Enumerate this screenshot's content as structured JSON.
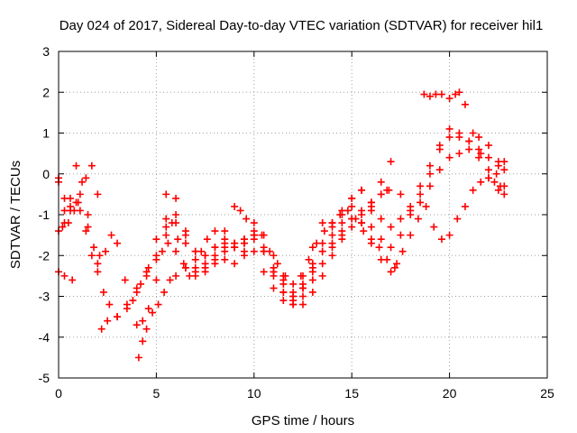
{
  "chart_data": {
    "type": "scatter",
    "title": "Day 024 of 2017, Sidereal Day-to-day VTEC variation (SDTVAR) for receiver hil1",
    "xlabel": "GPS time / hours",
    "ylabel": "SDTVAR / TECUs",
    "xlim": [
      0,
      25
    ],
    "ylim": [
      -5,
      3
    ],
    "xticks": [
      "0",
      "5",
      "10",
      "15",
      "20",
      "25"
    ],
    "yticks": [
      "-5",
      "-4",
      "-3",
      "-2",
      "-1",
      "0",
      "1",
      "2",
      "3"
    ],
    "grid": true,
    "marker": "+",
    "color": "#ff0000",
    "series": [
      {
        "x": [
          0.0,
          0.3,
          0.6,
          0.9,
          1.1,
          1.4,
          1.7,
          2.0,
          2.3,
          2.6,
          3.0,
          3.5,
          4.0,
          4.5,
          5.0,
          5.3,
          5.6,
          6.0,
          6.5,
          7.0,
          7.5,
          8.0,
          8.5,
          9.0,
          9.5,
          10.0,
          10.5,
          11.0,
          11.5,
          12.0,
          12.5,
          13.0,
          13.5,
          14.0,
          14.5,
          15.0,
          15.5,
          16.0,
          16.5,
          17.0,
          17.5,
          18.0,
          18.5,
          19.0,
          19.5,
          20.0,
          20.5,
          21.0,
          21.5,
          22.0,
          22.5,
          22.8
        ],
        "y": [
          -0.1,
          -0.6,
          -0.8,
          -0.7,
          -0.9,
          -1.4,
          -2.0,
          -2.4,
          -2.9,
          -3.2,
          -3.5,
          -3.3,
          -2.9,
          -2.4,
          -2.1,
          -1.9,
          -1.7,
          -1.9,
          -2.3,
          -2.5,
          -2.4,
          -2.1,
          -1.8,
          -1.7,
          -1.6,
          -1.5,
          -1.9,
          -2.4,
          -2.7,
          -2.9,
          -2.8,
          -2.4,
          -1.9,
          -1.5,
          -1.0,
          -0.6,
          -0.4,
          -0.7,
          -1.1,
          -1.3,
          -1.1,
          -0.8,
          -0.3,
          0.2,
          0.7,
          1.1,
          0.9,
          0.8,
          0.6,
          0.4,
          0.2,
          0.3
        ]
      },
      {
        "x": [
          0.0,
          0.3,
          0.6,
          0.9,
          1.2,
          1.5,
          1.8,
          2.1,
          2.4,
          2.7,
          3.0,
          3.4,
          3.8,
          4.2,
          4.6,
          5.0,
          5.5,
          6.0,
          6.5,
          7.0,
          7.5,
          8.0,
          8.5,
          9.0,
          9.5,
          10.0,
          10.5,
          11.0,
          11.5,
          12.0,
          12.5,
          13.0,
          13.5,
          14.0,
          14.5,
          15.0,
          15.5,
          16.0,
          16.5,
          17.0,
          17.5,
          18.0,
          18.5,
          19.0,
          19.5,
          20.0,
          20.5,
          21.0,
          21.5,
          22.0,
          22.5,
          22.8
        ],
        "y": [
          -1.4,
          -1.2,
          -0.9,
          0.2,
          -0.2,
          -1.0,
          -1.8,
          -2.0,
          -1.9,
          -1.5,
          -1.7,
          -2.6,
          -3.1,
          -2.7,
          -2.3,
          -1.6,
          -1.1,
          -1.0,
          -1.5,
          -1.9,
          -2.0,
          -1.8,
          -1.6,
          -1.8,
          -2.0,
          -1.9,
          -2.4,
          -2.8,
          -3.1,
          -3.2,
          -3.0,
          -2.6,
          -2.2,
          -1.8,
          -1.4,
          -1.1,
          -1.0,
          -1.3,
          -1.6,
          -1.8,
          -1.5,
          -1.0,
          -0.5,
          0.0,
          0.6,
          0.9,
          1.0,
          0.8,
          0.4,
          -0.1,
          -0.4,
          -0.5
        ]
      },
      {
        "x": [
          0.0,
          0.3,
          0.6,
          1.0,
          1.5,
          2.0,
          2.2,
          2.5,
          3.0,
          3.5,
          4.0,
          4.5,
          5.0,
          5.5,
          6.0,
          6.5,
          7.0,
          7.5,
          8.0,
          8.5,
          9.0,
          9.5,
          10.0,
          10.5,
          11.0,
          11.5,
          12.0,
          12.5,
          13.0,
          13.5,
          14.0,
          14.5,
          15.0,
          15.5,
          16.0,
          16.5,
          17.0,
          17.5,
          18.0,
          18.5,
          19.0,
          19.5,
          20.0,
          20.5,
          21.0,
          21.5,
          22.0,
          22.5,
          22.8
        ],
        "y": [
          -0.2,
          -0.9,
          -0.6,
          -0.7,
          -1.3,
          -2.2,
          -3.8,
          -3.6,
          -3.5,
          -3.2,
          -2.8,
          -2.5,
          -2.0,
          -1.5,
          -1.2,
          -1.4,
          -1.9,
          -2.2,
          -2.0,
          -1.7,
          -1.8,
          -1.9,
          -1.6,
          -1.5,
          -2.0,
          -2.5,
          -3.0,
          -3.2,
          -2.9,
          -2.5,
          -2.0,
          -1.6,
          -1.3,
          -1.2,
          -0.8,
          -0.2,
          0.3,
          -0.5,
          -0.9,
          -0.7,
          -0.3,
          0.1,
          0.4,
          0.5,
          0.6,
          0.9,
          0.7,
          0.3,
          0.1
        ]
      },
      {
        "x": [
          4.1,
          4.3,
          4.5,
          4.8,
          5.1,
          5.4,
          5.7,
          6.0,
          6.5,
          7.0,
          7.5,
          8.0,
          8.5,
          9.0,
          9.5,
          10.0,
          10.5,
          11.0,
          11.5,
          12.0,
          12.5,
          13.0,
          13.5,
          14.0,
          14.5,
          15.0,
          15.5,
          16.0,
          16.5,
          17.0,
          17.3
        ],
        "y": [
          -4.5,
          -4.1,
          -3.8,
          -3.4,
          -3.2,
          -2.9,
          -2.6,
          -2.5,
          -2.3,
          -2.1,
          -2.0,
          -2.2,
          -2.1,
          -1.7,
          -1.6,
          -1.5,
          -1.8,
          -2.4,
          -2.9,
          -3.1,
          -2.8,
          -2.3,
          -1.7,
          -1.2,
          -0.9,
          -0.8,
          -1.2,
          -1.7,
          -2.1,
          -2.4,
          -2.2
        ]
      },
      {
        "x": [
          4.0,
          4.3,
          4.6,
          5.0,
          5.5,
          6.0,
          6.5,
          7.0,
          7.5,
          8.0,
          8.5,
          9.0,
          9.5,
          10.0,
          10.5,
          11.0,
          11.5,
          12.0,
          12.5,
          13.0,
          13.5,
          14.0,
          14.5,
          15.0,
          15.5,
          16.0,
          16.5,
          16.9
        ],
        "y": [
          -3.7,
          -3.6,
          -3.3,
          -2.6,
          -1.3,
          -0.6,
          -1.7,
          -2.4,
          -2.0,
          -1.4,
          -1.4,
          -1.8,
          -1.7,
          -1.4,
          -1.9,
          -2.5,
          -2.9,
          -3.0,
          -2.7,
          -2.2,
          -1.9,
          -1.7,
          -1.2,
          -0.6,
          -0.4,
          -0.9,
          -0.5,
          -0.4
        ]
      },
      {
        "x": [
          7.5,
          8.0,
          8.5,
          9.0,
          9.5,
          10.0,
          10.5,
          11.0,
          11.5,
          12.0,
          12.5,
          13.0,
          13.5,
          14.0,
          14.5,
          15.0,
          15.5,
          16.0,
          16.5,
          16.8
        ],
        "y": [
          -2.3,
          -1.8,
          -1.9,
          -2.2,
          -1.7,
          -1.5,
          -1.9,
          -2.3,
          -2.6,
          -3.2,
          -2.5,
          -1.8,
          -1.2,
          -1.3,
          -1.5,
          -1.1,
          -0.9,
          -0.7,
          -0.5,
          -0.4
        ]
      },
      {
        "x": [
          9.0,
          9.3,
          9.6,
          10.0,
          10.4,
          10.8,
          11.2,
          11.6,
          12.0,
          12.4,
          12.8,
          13.2,
          13.6,
          14.0,
          14.4,
          14.8,
          15.2,
          15.6,
          16.0,
          16.4,
          16.8,
          17.2,
          17.6,
          18.0,
          18.4,
          18.8,
          19.2,
          19.6,
          20.0,
          20.4,
          20.8,
          21.2,
          21.6,
          22.0,
          22.4,
          22.8
        ],
        "y": [
          -0.8,
          -0.9,
          -1.1,
          -1.2,
          -1.5,
          -1.9,
          -2.2,
          -2.5,
          -2.7,
          -2.5,
          -2.1,
          -1.7,
          -1.4,
          -1.2,
          -1.0,
          -0.9,
          -1.1,
          -1.4,
          -1.6,
          -1.8,
          -2.1,
          -2.3,
          -1.9,
          -1.5,
          -1.1,
          -0.8,
          -1.3,
          -1.6,
          -1.5,
          -1.1,
          -0.8,
          -0.4,
          -0.2,
          -0.1,
          0.0,
          -0.3
        ]
      },
      {
        "x": [
          0.0,
          0.3,
          0.7
        ],
        "y": [
          -2.4,
          -2.5,
          -2.6
        ]
      },
      {
        "x": [
          18.7,
          19.0,
          19.3,
          19.6,
          20.0,
          20.3,
          20.5,
          20.8,
          21.2,
          21.6,
          22.0,
          22.3,
          22.6
        ],
        "y": [
          1.95,
          1.9,
          1.95,
          1.95,
          1.85,
          1.95,
          2.0,
          1.7,
          1.0,
          0.5,
          0.1,
          -0.2,
          -0.3
        ]
      },
      {
        "x": [
          0.2,
          0.5,
          0.8,
          1.1,
          1.4,
          1.7,
          2.0
        ],
        "y": [
          -1.3,
          -1.2,
          -0.9,
          -0.5,
          -0.1,
          0.2,
          -0.5
        ]
      },
      {
        "x": [
          5.5,
          5.8,
          6.1,
          6.4,
          6.7,
          7.0,
          7.3,
          7.6
        ],
        "y": [
          -0.5,
          -1.2,
          -1.6,
          -2.2,
          -2.5,
          -2.3,
          -1.9,
          -1.6
        ]
      }
    ]
  }
}
